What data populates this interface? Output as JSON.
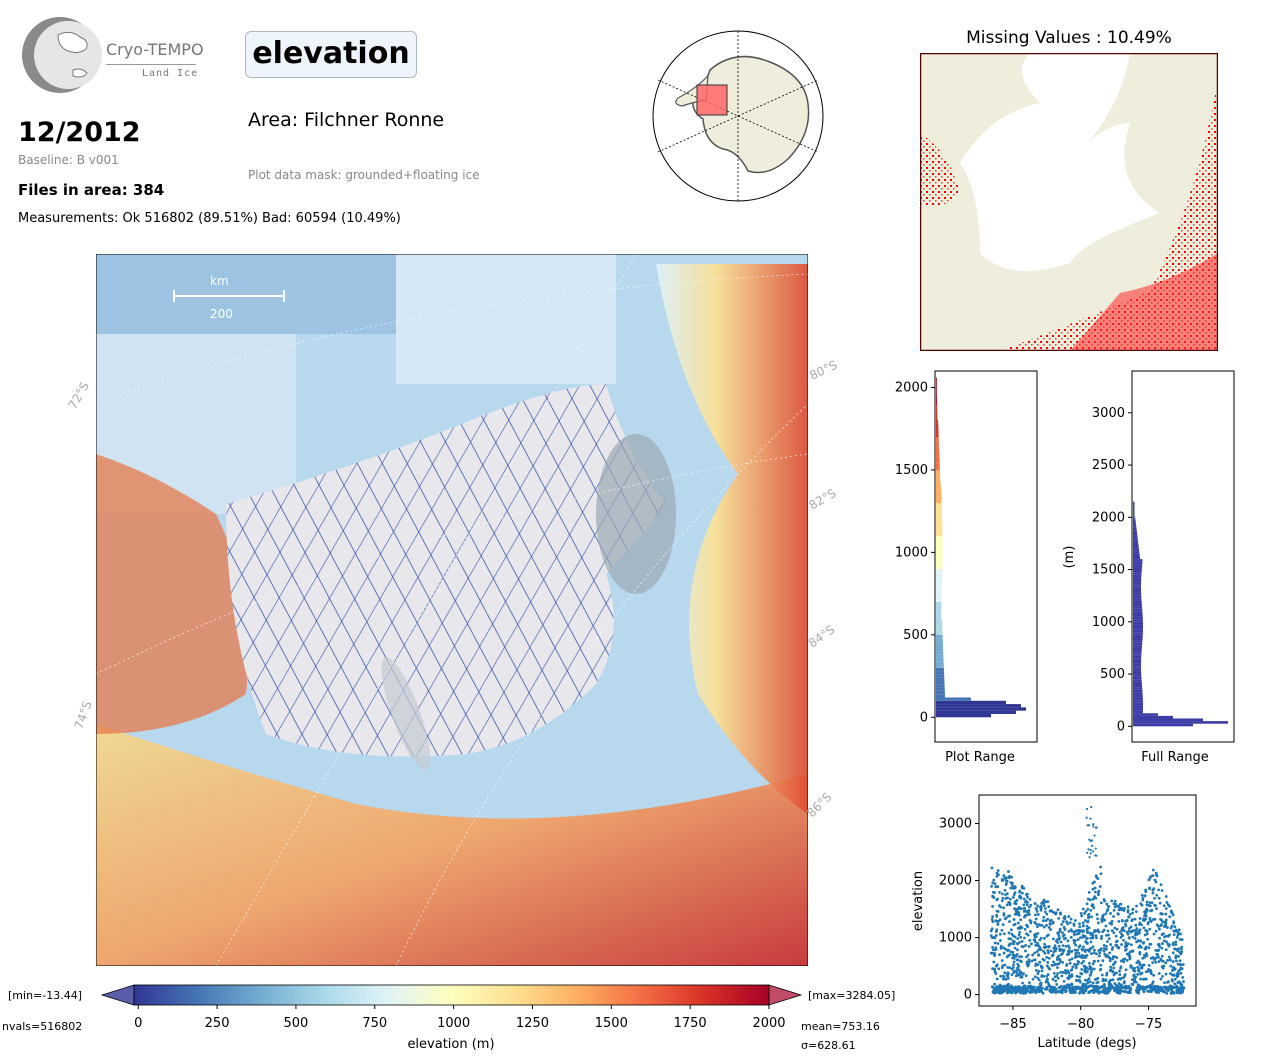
{
  "header": {
    "logo_name": "Cryo-TEMPO",
    "logo_sub": "Land Ice",
    "date": "12/2012",
    "baseline": "Baseline: B v001",
    "files": "Files in area: 384",
    "measurements": "Measurements: Ok 516802 (89.51%) Bad: 60594 (10.49%)",
    "variable": "elevation",
    "area": "Area: Filchner Ronne",
    "mask": "Plot data mask: grounded+floating ice"
  },
  "main_map": {
    "scale_unit": "km",
    "scale_value": "200",
    "lat_labels": [
      "72°S",
      "74°S",
      "80°S",
      "82°S",
      "84°S",
      "86°S"
    ]
  },
  "colorbar": {
    "min_label": "[min=-13.44]",
    "max_label": "[max=3284.05]",
    "nvals": "nvals=516802",
    "mean": "mean=753.16",
    "sigma": "σ=628.61",
    "label": "elevation (m)",
    "ticks": [
      "0",
      "250",
      "500",
      "750",
      "1000",
      "1250",
      "1500",
      "1750",
      "2000"
    ],
    "colors": [
      "#313695",
      "#4575b4",
      "#74add1",
      "#abd9e9",
      "#e0f3f8",
      "#ffffbf",
      "#fee090",
      "#fdae61",
      "#f46d43",
      "#d73027",
      "#a50026"
    ]
  },
  "missing": {
    "title": "Missing Values : 10.49%"
  },
  "chart_data": [
    {
      "type": "bar",
      "orientation": "horizontal",
      "xlabel": "Plot Range",
      "ylabel": "",
      "ylim": [
        -150,
        2100
      ],
      "yticks": [
        "0",
        "500",
        "1000",
        "1500",
        "2000"
      ],
      "yticks_values": [
        0,
        500,
        1000,
        1500,
        2000
      ]
    },
    {
      "type": "bar",
      "orientation": "horizontal",
      "xlabel": "Full Range",
      "ylabel": "(m)",
      "ylim": [
        -150,
        3400
      ],
      "yticks": [
        "0",
        "500",
        "1000",
        "1500",
        "2000",
        "2500",
        "3000"
      ],
      "yticks_values": [
        0,
        500,
        1000,
        1500,
        2000,
        2500,
        3000
      ]
    },
    {
      "type": "scatter",
      "xlabel": "Latitude (degs)",
      "ylabel": "elevation",
      "xlim": [
        -87.5,
        -71.5
      ],
      "ylim": [
        -200,
        3500
      ],
      "xticks": [
        "−85",
        "−80",
        "−75"
      ],
      "xticks_values": [
        -85,
        -80,
        -75
      ],
      "yticks": [
        "0",
        "1000",
        "2000",
        "3000"
      ],
      "yticks_values": [
        0,
        1000,
        2000,
        3000
      ],
      "color": "#1f77b4"
    }
  ]
}
